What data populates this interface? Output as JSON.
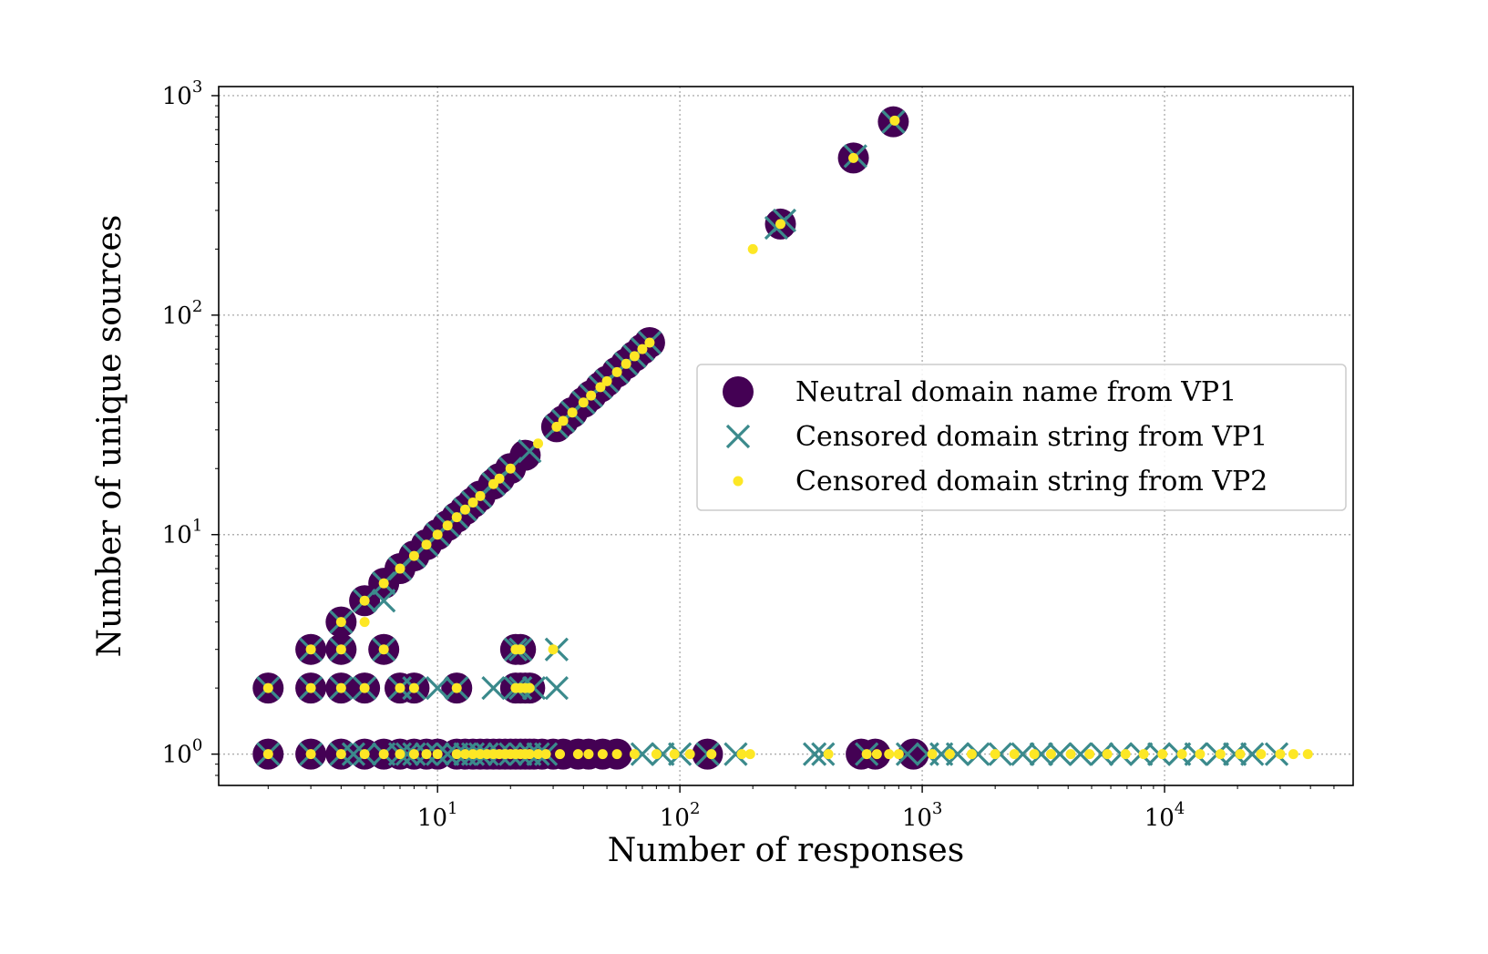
{
  "chart_data": {
    "type": "scatter",
    "xlabel": "Number of responses",
    "ylabel": "Number of unique sources",
    "xscale": "log",
    "yscale": "log",
    "xlim": [
      1.25,
      60000
    ],
    "ylim": [
      0.72,
      1100
    ],
    "grid": true,
    "legend_position": "center-right",
    "x_ticks": [
      {
        "value": 10,
        "base": "10",
        "exp": "1"
      },
      {
        "value": 100,
        "base": "10",
        "exp": "2"
      },
      {
        "value": 1000,
        "base": "10",
        "exp": "3"
      },
      {
        "value": 10000,
        "base": "10",
        "exp": "4"
      }
    ],
    "y_ticks": [
      {
        "value": 1,
        "base": "10",
        "exp": "0"
      },
      {
        "value": 10,
        "base": "10",
        "exp": "1"
      },
      {
        "value": 100,
        "base": "10",
        "exp": "2"
      },
      {
        "value": 1000,
        "base": "10",
        "exp": "3"
      }
    ],
    "series": [
      {
        "name": "Neutral domain name from VP1",
        "marker": "circle",
        "color": "#440154",
        "points": [
          [
            2,
            1
          ],
          [
            3,
            1
          ],
          [
            4,
            1
          ],
          [
            5,
            1
          ],
          [
            6,
            1
          ],
          [
            7,
            1
          ],
          [
            8,
            1
          ],
          [
            9,
            1
          ],
          [
            10,
            1
          ],
          [
            12,
            1
          ],
          [
            13,
            1
          ],
          [
            14,
            1
          ],
          [
            15,
            1
          ],
          [
            16,
            1
          ],
          [
            17,
            1
          ],
          [
            18,
            1
          ],
          [
            19,
            1
          ],
          [
            20,
            1
          ],
          [
            21,
            1
          ],
          [
            22,
            1
          ],
          [
            23,
            1
          ],
          [
            24,
            1
          ],
          [
            25,
            1
          ],
          [
            27,
            1
          ],
          [
            30,
            1
          ],
          [
            33,
            1
          ],
          [
            38,
            1
          ],
          [
            42,
            1
          ],
          [
            48,
            1
          ],
          [
            55,
            1
          ],
          [
            130,
            1
          ],
          [
            560,
            1
          ],
          [
            640,
            1
          ],
          [
            920,
            1
          ],
          [
            2,
            2
          ],
          [
            3,
            2
          ],
          [
            4,
            2
          ],
          [
            5,
            2
          ],
          [
            7,
            2
          ],
          [
            8,
            2
          ],
          [
            12,
            2
          ],
          [
            21,
            2
          ],
          [
            22,
            2
          ],
          [
            23,
            2
          ],
          [
            24,
            2
          ],
          [
            3,
            3
          ],
          [
            4,
            3
          ],
          [
            6,
            3
          ],
          [
            21,
            3
          ],
          [
            22,
            3
          ],
          [
            4,
            4
          ],
          [
            5,
            5
          ],
          [
            6,
            6
          ],
          [
            7,
            7
          ],
          [
            8,
            8
          ],
          [
            9,
            9
          ],
          [
            10,
            10
          ],
          [
            11,
            11
          ],
          [
            12,
            12
          ],
          [
            13,
            13
          ],
          [
            14,
            14
          ],
          [
            15,
            15
          ],
          [
            17,
            17
          ],
          [
            18,
            18
          ],
          [
            20,
            20
          ],
          [
            23,
            23
          ],
          [
            31,
            31
          ],
          [
            33,
            33
          ],
          [
            36,
            36
          ],
          [
            40,
            40
          ],
          [
            43,
            43
          ],
          [
            47,
            47
          ],
          [
            50,
            50
          ],
          [
            55,
            55
          ],
          [
            60,
            60
          ],
          [
            65,
            65
          ],
          [
            70,
            70
          ],
          [
            75,
            75
          ],
          [
            260,
            260
          ],
          [
            520,
            520
          ],
          [
            760,
            760
          ]
        ]
      },
      {
        "name": "Censored domain string from VP1",
        "marker": "x",
        "color": "#3b8a8c",
        "points": [
          [
            2,
            1
          ],
          [
            3,
            1
          ],
          [
            4,
            1
          ],
          [
            4.5,
            1
          ],
          [
            5,
            1
          ],
          [
            6,
            1
          ],
          [
            7,
            1
          ],
          [
            7.5,
            1
          ],
          [
            8,
            1
          ],
          [
            9,
            1
          ],
          [
            10,
            1
          ],
          [
            11,
            1
          ],
          [
            12,
            1
          ],
          [
            13,
            1
          ],
          [
            14,
            1
          ],
          [
            15,
            1
          ],
          [
            16,
            1
          ],
          [
            18,
            1
          ],
          [
            20,
            1
          ],
          [
            22,
            1
          ],
          [
            24,
            1
          ],
          [
            26,
            1
          ],
          [
            28,
            1
          ],
          [
            70,
            1
          ],
          [
            85,
            1
          ],
          [
            100,
            1
          ],
          [
            130,
            1
          ],
          [
            170,
            1
          ],
          [
            360,
            1
          ],
          [
            390,
            1
          ],
          [
            590,
            1
          ],
          [
            870,
            1
          ],
          [
            1050,
            1
          ],
          [
            1200,
            1
          ],
          [
            1400,
            1
          ],
          [
            1700,
            1
          ],
          [
            2100,
            1
          ],
          [
            2600,
            1
          ],
          [
            3100,
            1
          ],
          [
            3700,
            1
          ],
          [
            4500,
            1
          ],
          [
            5500,
            1
          ],
          [
            6600,
            1
          ],
          [
            8000,
            1
          ],
          [
            9500,
            1
          ],
          [
            11500,
            1
          ],
          [
            13500,
            1
          ],
          [
            16500,
            1
          ],
          [
            19500,
            1
          ],
          [
            23000,
            1
          ],
          [
            29000,
            1
          ],
          [
            2,
            2
          ],
          [
            3,
            2
          ],
          [
            4,
            2
          ],
          [
            5,
            2
          ],
          [
            7,
            2
          ],
          [
            8,
            2
          ],
          [
            10,
            2
          ],
          [
            12,
            2
          ],
          [
            17,
            2
          ],
          [
            21,
            2
          ],
          [
            22,
            2
          ],
          [
            25,
            2
          ],
          [
            31,
            2
          ],
          [
            3,
            3
          ],
          [
            4,
            3
          ],
          [
            6,
            3
          ],
          [
            21,
            3
          ],
          [
            22,
            3
          ],
          [
            31,
            3
          ],
          [
            4,
            4
          ],
          [
            5,
            5
          ],
          [
            6,
            5
          ],
          [
            6,
            6
          ],
          [
            7,
            7
          ],
          [
            8,
            8
          ],
          [
            9,
            9
          ],
          [
            10,
            10
          ],
          [
            11,
            11
          ],
          [
            12,
            12
          ],
          [
            13,
            13
          ],
          [
            14,
            14
          ],
          [
            15,
            15
          ],
          [
            17,
            17
          ],
          [
            18,
            18
          ],
          [
            20,
            20
          ],
          [
            24,
            24
          ],
          [
            31,
            31
          ],
          [
            33,
            33
          ],
          [
            36,
            36
          ],
          [
            40,
            40
          ],
          [
            43,
            43
          ],
          [
            47,
            47
          ],
          [
            50,
            50
          ],
          [
            55,
            55
          ],
          [
            60,
            60
          ],
          [
            65,
            65
          ],
          [
            70,
            70
          ],
          [
            75,
            75
          ],
          [
            250,
            250
          ],
          [
            270,
            270
          ],
          [
            530,
            530
          ],
          [
            760,
            760
          ]
        ]
      },
      {
        "name": "Censored domain string from VP2",
        "marker": "point",
        "color": "#fde725",
        "points": [
          [
            2,
            1
          ],
          [
            3,
            1
          ],
          [
            4,
            1
          ],
          [
            5,
            1
          ],
          [
            6,
            1
          ],
          [
            7,
            1
          ],
          [
            8,
            1
          ],
          [
            9,
            1
          ],
          [
            10,
            1
          ],
          [
            12,
            1
          ],
          [
            13,
            1
          ],
          [
            14,
            1
          ],
          [
            15,
            1
          ],
          [
            16,
            1
          ],
          [
            17,
            1
          ],
          [
            18,
            1
          ],
          [
            19,
            1
          ],
          [
            20,
            1
          ],
          [
            21,
            1
          ],
          [
            22,
            1
          ],
          [
            23,
            1
          ],
          [
            24,
            1
          ],
          [
            26,
            1
          ],
          [
            28,
            1
          ],
          [
            32,
            1
          ],
          [
            38,
            1
          ],
          [
            42,
            1
          ],
          [
            48,
            1
          ],
          [
            55,
            1
          ],
          [
            65,
            1
          ],
          [
            80,
            1
          ],
          [
            95,
            1
          ],
          [
            110,
            1
          ],
          [
            135,
            1
          ],
          [
            180,
            1
          ],
          [
            195,
            1
          ],
          [
            410,
            1
          ],
          [
            590,
            1
          ],
          [
            650,
            1
          ],
          [
            730,
            1
          ],
          [
            800,
            1
          ],
          [
            1100,
            1
          ],
          [
            1300,
            1
          ],
          [
            1600,
            1
          ],
          [
            2000,
            1
          ],
          [
            2400,
            1
          ],
          [
            2900,
            1
          ],
          [
            3400,
            1
          ],
          [
            4100,
            1
          ],
          [
            4900,
            1
          ],
          [
            5800,
            1
          ],
          [
            6900,
            1
          ],
          [
            8200,
            1
          ],
          [
            9800,
            1
          ],
          [
            11800,
            1
          ],
          [
            14000,
            1
          ],
          [
            17000,
            1
          ],
          [
            20500,
            1
          ],
          [
            25000,
            1
          ],
          [
            30000,
            1
          ],
          [
            34000,
            1
          ],
          [
            39000,
            1
          ],
          [
            2,
            2
          ],
          [
            3,
            2
          ],
          [
            4,
            2
          ],
          [
            5,
            2
          ],
          [
            7,
            2
          ],
          [
            8,
            2
          ],
          [
            12,
            2
          ],
          [
            21,
            2
          ],
          [
            22,
            2
          ],
          [
            23,
            2
          ],
          [
            24,
            2
          ],
          [
            3,
            3
          ],
          [
            4,
            3
          ],
          [
            6,
            3
          ],
          [
            21,
            3
          ],
          [
            22,
            3
          ],
          [
            30,
            3
          ],
          [
            4,
            4
          ],
          [
            5,
            4
          ],
          [
            5,
            5
          ],
          [
            6,
            6
          ],
          [
            7,
            7
          ],
          [
            8,
            8
          ],
          [
            9,
            9
          ],
          [
            10,
            10
          ],
          [
            11,
            11
          ],
          [
            12,
            12
          ],
          [
            13,
            13
          ],
          [
            14,
            14
          ],
          [
            15,
            15
          ],
          [
            17,
            17
          ],
          [
            18,
            18
          ],
          [
            20,
            20
          ],
          [
            26,
            26
          ],
          [
            31,
            31
          ],
          [
            33,
            33
          ],
          [
            36,
            36
          ],
          [
            40,
            40
          ],
          [
            43,
            43
          ],
          [
            47,
            47
          ],
          [
            50,
            50
          ],
          [
            55,
            55
          ],
          [
            60,
            60
          ],
          [
            65,
            65
          ],
          [
            70,
            70
          ],
          [
            75,
            75
          ],
          [
            200,
            200
          ],
          [
            260,
            260
          ],
          [
            520,
            520
          ],
          [
            770,
            770
          ]
        ]
      }
    ]
  }
}
